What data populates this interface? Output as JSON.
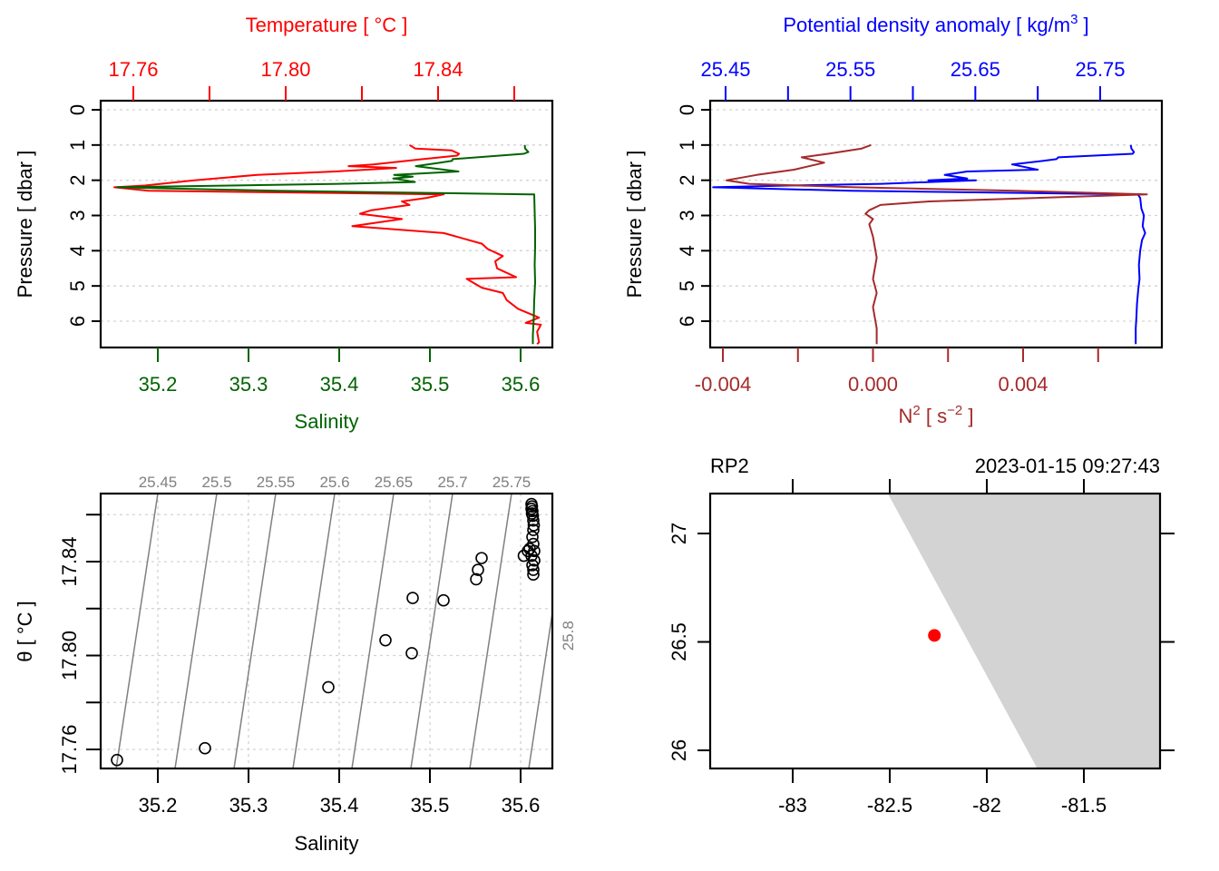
{
  "chart_data": [
    {
      "type": "line",
      "panel": "profile-temperature-salinity",
      "title": "",
      "top_axis": {
        "label": "Temperature [ °C ]",
        "color": "#ff0000",
        "ticks": [
          17.76,
          17.78,
          17.8,
          17.82,
          17.84,
          17.86
        ],
        "tick_labels": [
          "17.76",
          "",
          "17.80",
          "",
          "17.84",
          ""
        ]
      },
      "bottom_axis": {
        "label": "Salinity",
        "color": "#006400",
        "ticks": [
          35.2,
          35.3,
          35.4,
          35.5,
          35.6
        ],
        "tick_labels": [
          "35.2",
          "35.3",
          "35.4",
          "35.5",
          "35.6"
        ]
      },
      "y_axis": {
        "label": "Pressure [ dbar ]",
        "ticks": [
          0,
          1,
          2,
          3,
          4,
          5,
          6
        ],
        "tick_labels": [
          "0",
          "1",
          "2",
          "3",
          "4",
          "5",
          "6"
        ],
        "ylim": [
          6.7,
          -0.25
        ],
        "reversed": true
      },
      "grid": true,
      "series": [
        {
          "name": "Temperature",
          "color": "#ff0000",
          "axis": "top",
          "points": [
            [
              17.8325,
              1.0
            ],
            [
              17.834,
              1.1
            ],
            [
              17.8435,
              1.15
            ],
            [
              17.8455,
              1.25
            ],
            [
              17.845,
              1.3
            ],
            [
              17.836,
              1.4
            ],
            [
              17.823,
              1.55
            ],
            [
              17.8165,
              1.6
            ],
            [
              17.829,
              1.65
            ],
            [
              17.813,
              1.75
            ],
            [
              17.7925,
              1.85
            ],
            [
              17.776,
              2.0
            ],
            [
              17.763,
              2.15
            ],
            [
              17.755,
              2.2
            ],
            [
              17.764,
              2.3
            ],
            [
              17.8415,
              2.4
            ],
            [
              17.837,
              2.5
            ],
            [
              17.8305,
              2.6
            ],
            [
              17.8325,
              2.7
            ],
            [
              17.8225,
              2.85
            ],
            [
              17.8195,
              2.95
            ],
            [
              17.8305,
              3.1
            ],
            [
              17.8175,
              3.3
            ],
            [
              17.8415,
              3.5
            ],
            [
              17.8515,
              3.8
            ],
            [
              17.853,
              3.95
            ],
            [
              17.857,
              4.15
            ],
            [
              17.855,
              4.3
            ],
            [
              17.8555,
              4.5
            ],
            [
              17.8605,
              4.75
            ],
            [
              17.8475,
              4.8
            ],
            [
              17.8515,
              5.05
            ],
            [
              17.857,
              5.2
            ],
            [
              17.858,
              5.4
            ],
            [
              17.861,
              5.65
            ],
            [
              17.8665,
              5.9
            ],
            [
              17.863,
              6.05
            ],
            [
              17.867,
              6.1
            ],
            [
              17.866,
              6.3
            ],
            [
              17.8665,
              6.6
            ],
            [
              17.866,
              6.65
            ]
          ]
        },
        {
          "name": "Salinity",
          "color": "#006400",
          "axis": "bottom",
          "points": [
            [
              35.6045,
              1.0
            ],
            [
              35.605,
              1.1
            ],
            [
              35.6085,
              1.2
            ],
            [
              35.6035,
              1.25
            ],
            [
              35.525,
              1.4
            ],
            [
              35.5245,
              1.45
            ],
            [
              35.5115,
              1.5
            ],
            [
              35.4845,
              1.6
            ],
            [
              35.5315,
              1.75
            ],
            [
              35.4605,
              1.85
            ],
            [
              35.481,
              1.9
            ],
            [
              35.4595,
              1.95
            ],
            [
              35.4835,
              2.05
            ],
            [
              35.4005,
              2.1
            ],
            [
              35.28,
              2.15
            ],
            [
              35.155,
              2.2
            ],
            [
              35.33,
              2.3
            ],
            [
              35.61,
              2.4
            ],
            [
              35.615,
              2.4
            ],
            [
              35.6155,
              2.9
            ],
            [
              35.616,
              3.4
            ],
            [
              35.616,
              3.9
            ],
            [
              35.6155,
              4.4
            ],
            [
              35.616,
              4.9
            ],
            [
              35.615,
              5.4
            ],
            [
              35.6145,
              5.9
            ],
            [
              35.6135,
              6.4
            ],
            [
              35.6135,
              6.65
            ]
          ]
        }
      ]
    },
    {
      "type": "line",
      "panel": "profile-density-buoyancy",
      "top_axis": {
        "label": "Potential density anomaly [ kg/m³ ]",
        "label_base": "Potential density anomaly [ kg/m",
        "label_sup": "3",
        "label_end": " ]",
        "color": "#0000ff",
        "ticks": [
          25.45,
          25.5,
          25.55,
          25.6,
          25.65,
          25.7,
          25.75
        ],
        "tick_labels": [
          "25.45",
          "",
          "25.55",
          "",
          "25.65",
          "",
          "25.75"
        ]
      },
      "bottom_axis": {
        "label": "N² [ s⁻² ]",
        "label_n": "N",
        "label_sup1": "2",
        "label_mid": " [ s",
        "label_sup2": "−2",
        "label_end": " ]",
        "color": "#a52a2a",
        "ticks": [
          -0.004,
          -0.002,
          0.0,
          0.002,
          0.004,
          0.006
        ],
        "tick_labels": [
          "-0.004",
          "",
          "0.000",
          "",
          "0.004",
          ""
        ]
      },
      "y_axis": {
        "label": "Pressure [ dbar ]",
        "ticks": [
          0,
          1,
          2,
          3,
          4,
          5,
          6
        ],
        "tick_labels": [
          "0",
          "1",
          "2",
          "3",
          "4",
          "5",
          "6"
        ],
        "ylim": [
          6.7,
          -0.25
        ],
        "reversed": true
      },
      "grid": true,
      "series": [
        {
          "name": "Potential density anomaly",
          "color": "#0000ff",
          "axis": "top",
          "points": [
            [
              25.7745,
              1.0
            ],
            [
              25.775,
              1.1
            ],
            [
              25.777,
              1.2
            ],
            [
              25.776,
              1.25
            ],
            [
              25.7165,
              1.35
            ],
            [
              25.715,
              1.4
            ],
            [
              25.7045,
              1.45
            ],
            [
              25.6795,
              1.55
            ],
            [
              25.7,
              1.7
            ],
            [
              25.6435,
              1.75
            ],
            [
              25.6255,
              1.85
            ],
            [
              25.6435,
              1.95
            ],
            [
              25.6125,
              2.0
            ],
            [
              25.6505,
              2.0
            ],
            [
              25.575,
              2.1
            ],
            [
              25.5,
              2.15
            ],
            [
              25.44,
              2.2
            ],
            [
              25.55,
              2.3
            ],
            [
              25.78,
              2.4
            ],
            [
              25.782,
              2.5
            ],
            [
              25.783,
              2.8
            ],
            [
              25.785,
              3.0
            ],
            [
              25.784,
              3.3
            ],
            [
              25.786,
              3.5
            ],
            [
              25.7835,
              3.7
            ],
            [
              25.782,
              4.0
            ],
            [
              25.781,
              4.4
            ],
            [
              25.7815,
              4.8
            ],
            [
              25.7805,
              5.1
            ],
            [
              25.7795,
              5.5
            ],
            [
              25.779,
              5.9
            ],
            [
              25.7785,
              6.2
            ],
            [
              25.7785,
              6.65
            ]
          ]
        },
        {
          "name": "N2",
          "color": "#a52a2a",
          "axis": "bottom",
          "points": [
            [
              -5e-05,
              1.0
            ],
            [
              -0.0003,
              1.1
            ],
            [
              -0.0012,
              1.25
            ],
            [
              -0.0019,
              1.35
            ],
            [
              -0.0013,
              1.5
            ],
            [
              -0.0021,
              1.7
            ],
            [
              -0.0031,
              1.85
            ],
            [
              -0.0039,
              2.0
            ],
            [
              -0.0033,
              2.1
            ],
            [
              -0.0005,
              2.2
            ],
            [
              0.0038,
              2.3
            ],
            [
              0.0073,
              2.4
            ],
            [
              0.0015,
              2.6
            ],
            [
              0.0002,
              2.7
            ],
            [
              -0.0001,
              2.85
            ],
            [
              -0.0002,
              2.95
            ],
            [
              0.0,
              3.1
            ],
            [
              -0.0001,
              3.25
            ],
            [
              0.0,
              3.6
            ],
            [
              0.0001,
              4.2
            ],
            [
              0.0,
              4.8
            ],
            [
              0.0001,
              5.2
            ],
            [
              0.0,
              5.6
            ],
            [
              0.0001,
              6.2
            ],
            [
              0.0001,
              6.65
            ]
          ]
        }
      ]
    },
    {
      "type": "scatter",
      "panel": "ts-diagram",
      "xlabel": "Salinity",
      "ylabel": "θ [ °C ]",
      "ylabel_theta": "θ",
      "ylabel_rest": " [ °C ]",
      "xticks": [
        35.2,
        35.3,
        35.4,
        35.5,
        35.6
      ],
      "xtick_labels": [
        "35.2",
        "35.3",
        "35.4",
        "35.5",
        "35.6"
      ],
      "yticks": [
        17.76,
        17.78,
        17.8,
        17.82,
        17.84,
        17.86
      ],
      "ytick_labels": [
        "17.76",
        "",
        "17.80",
        "",
        "17.84",
        ""
      ],
      "xlim": [
        35.137,
        35.635
      ],
      "ylim": [
        17.7516,
        17.8687
      ],
      "grid": true,
      "isopycnals": {
        "color": "#808080",
        "levels": [
          25.45,
          25.5,
          25.55,
          25.6,
          25.65,
          25.7,
          25.75,
          25.8
        ],
        "labels": [
          "25.45",
          "25.5",
          "25.55",
          "25.6",
          "25.65",
          "25.7",
          "25.75",
          "25.8"
        ],
        "bottom_salinity": [
          35.154,
          35.219,
          35.284,
          35.349,
          35.414,
          35.479,
          35.544,
          35.609
        ],
        "top_salinity": [
          35.2,
          35.265,
          35.33,
          35.395,
          35.46,
          35.525,
          35.59,
          35.655
        ]
      },
      "points": [
        [
          35.155,
          17.7555
        ],
        [
          35.252,
          17.7605
        ],
        [
          35.388,
          17.7865
        ],
        [
          35.451,
          17.8065
        ],
        [
          35.48,
          17.801
        ],
        [
          35.481,
          17.8245
        ],
        [
          35.515,
          17.8235
        ],
        [
          35.551,
          17.8325
        ],
        [
          35.553,
          17.8365
        ],
        [
          35.557,
          17.8415
        ],
        [
          35.6035,
          17.8425
        ],
        [
          35.608,
          17.8445
        ],
        [
          35.61,
          17.8455
        ],
        [
          35.612,
          17.8425
        ],
        [
          35.613,
          17.8385
        ],
        [
          35.614,
          17.8345
        ],
        [
          35.614,
          17.8365
        ],
        [
          35.615,
          17.8405
        ],
        [
          35.615,
          17.8445
        ],
        [
          35.614,
          17.8475
        ],
        [
          35.613,
          17.8505
        ],
        [
          35.614,
          17.8535
        ],
        [
          35.6145,
          17.8555
        ],
        [
          35.614,
          17.8575
        ],
        [
          35.6135,
          17.8595
        ],
        [
          35.613,
          17.8615
        ],
        [
          35.6125,
          17.8635
        ],
        [
          35.612,
          17.8645
        ],
        [
          35.612,
          17.8625
        ],
        [
          35.6125,
          17.8605
        ]
      ]
    },
    {
      "type": "scatter",
      "panel": "station-map",
      "station": "RP2",
      "datetime": "2023-01-15 09:27:43",
      "xticks": [
        -83,
        -82.5,
        -82,
        -81.5
      ],
      "xtick_labels": [
        "-83",
        "-82.5",
        "-82",
        "-81.5"
      ],
      "yticks": [
        26,
        26.5,
        27
      ],
      "ytick_labels": [
        "26",
        "26.5",
        "27"
      ],
      "xlim": [
        -83.42,
        -81.1
      ],
      "ylim": [
        25.915,
        27.185
      ],
      "land_color": "#d3d3d3",
      "land_polygon": [
        [
          -82.51,
          27.185
        ],
        [
          -81.1,
          27.185
        ],
        [
          -81.1,
          25.915
        ],
        [
          -81.74,
          25.915
        ]
      ],
      "station_position": [
        -82.27,
        26.53
      ],
      "station_color": "#ff0000"
    }
  ]
}
